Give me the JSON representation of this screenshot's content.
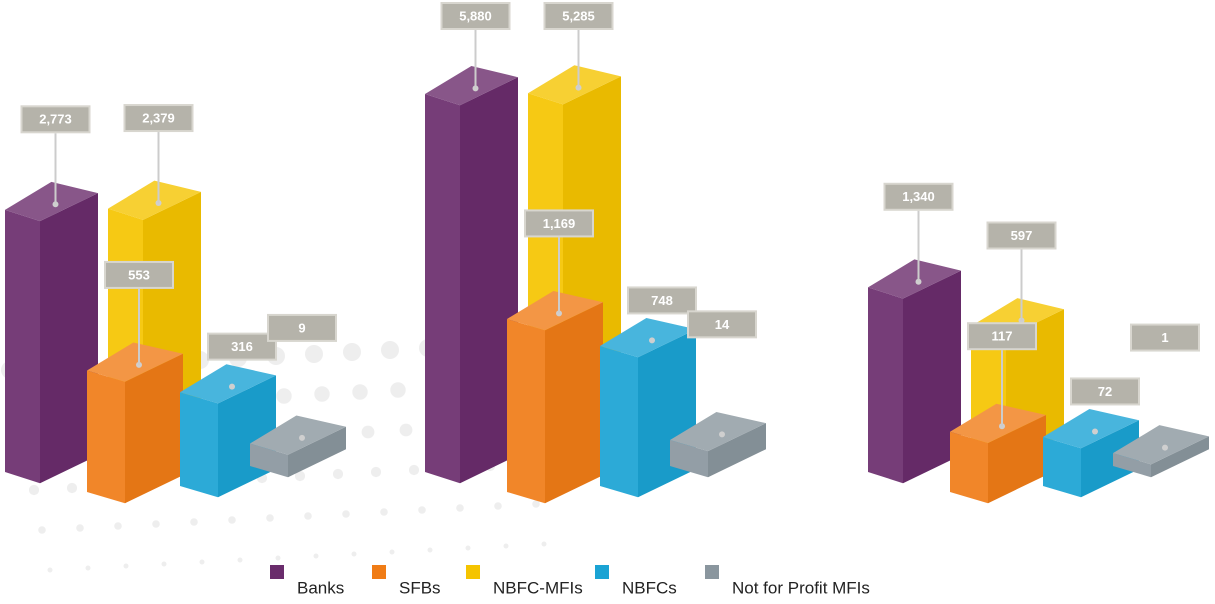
{
  "chart_data": {
    "type": "bar3d",
    "categories": [
      null,
      null,
      null
    ],
    "series": [
      {
        "name": "Banks",
        "color": "#6a2c6c",
        "values": [
          2773,
          5880,
          1340
        ],
        "value_labels": [
          "2,773",
          "5,880",
          "1,340"
        ]
      },
      {
        "name": "SFBs",
        "color": "#f07c16",
        "values": [
          553,
          1169,
          117
        ],
        "value_labels": [
          "553",
          "1,169",
          "117"
        ]
      },
      {
        "name": "NBFC-MFIs",
        "color": "#f5c400",
        "values": [
          2379,
          5285,
          597
        ],
        "value_labels": [
          "2,379",
          "5,285",
          "597"
        ]
      },
      {
        "name": "NBFCs",
        "color": "#1aa3d4",
        "values": [
          316,
          748,
          72
        ],
        "value_labels": [
          "316",
          "748",
          "72"
        ]
      },
      {
        "name": "Not for Profit MFIs",
        "color": "#8a969e",
        "values": [
          9,
          14,
          1
        ],
        "value_labels": [
          "9",
          "14",
          "1"
        ]
      }
    ],
    "legend": "bottom"
  }
}
